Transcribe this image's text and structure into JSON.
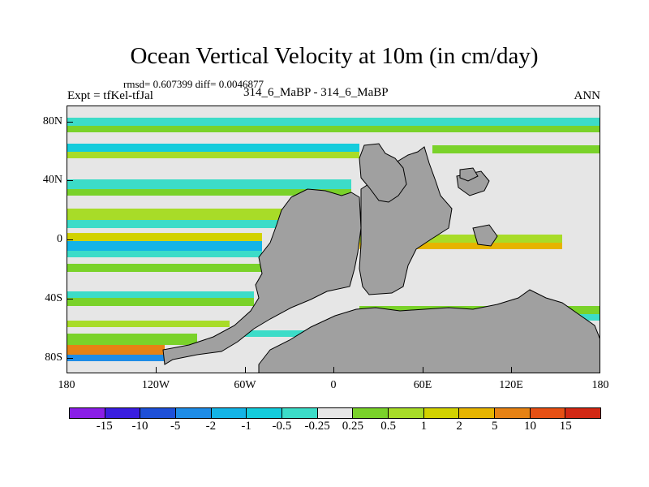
{
  "title": "Ocean Vertical Velocity at 10m (in cm/day)",
  "stats": "rmsd= 0.607399 diff= 0.0046877",
  "expt": "Expt = tfKel-tfJal",
  "case": "314_6_MaBP - 314_6_MaBP",
  "season": "ANN",
  "y_ticks": [
    "80N",
    "40N",
    "0",
    "40S",
    "80S"
  ],
  "x_ticks": [
    "180",
    "120W",
    "60W",
    "0",
    "60E",
    "120E",
    "180"
  ],
  "colorbar": {
    "labels": [
      "-15",
      "-10",
      "-5",
      "-2",
      "-1",
      "-0.5",
      "-0.25",
      "0.25",
      "0.5",
      "1",
      "2",
      "5",
      "10",
      "15"
    ],
    "colors": [
      "#8a1ee6",
      "#3a1ee0",
      "#1e50d8",
      "#1e8ce6",
      "#14b4e6",
      "#14ccdc",
      "#3cdcc8",
      "#e6e6e6",
      "#7ad22a",
      "#a8dc28",
      "#d2d200",
      "#e6b400",
      "#e68214",
      "#e65014",
      "#d22814"
    ]
  },
  "land_color": "#a0a0a0"
}
